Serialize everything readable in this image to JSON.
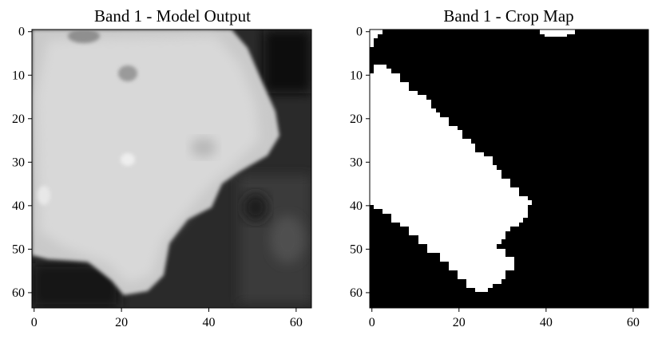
{
  "chart_data": [
    {
      "type": "heatmap",
      "title": "Band 1 - Model Output",
      "colormap": "gray",
      "shape": [
        64,
        64
      ],
      "xlim": [
        -0.5,
        63.5
      ],
      "ylim": [
        63.5,
        -0.5
      ],
      "xticks": [
        "0",
        "20",
        "40",
        "60"
      ],
      "yticks": [
        "0",
        "10",
        "20",
        "30",
        "40",
        "50",
        "60"
      ],
      "description_values": {
        "bright_region_level": 0.85,
        "dark_region_level": 0.2
      }
    },
    {
      "type": "heatmap",
      "title": "Band 1 - Crop Map",
      "colormap": "gray",
      "shape": [
        64,
        64
      ],
      "values_binary": [
        0,
        1
      ],
      "xlim": [
        -0.5,
        63.5
      ],
      "ylim": [
        63.5,
        -0.5
      ],
      "xticks": [
        "0",
        "20",
        "40",
        "60"
      ],
      "yticks": [
        "0",
        "10",
        "20",
        "30",
        "40",
        "50",
        "60"
      ]
    }
  ]
}
